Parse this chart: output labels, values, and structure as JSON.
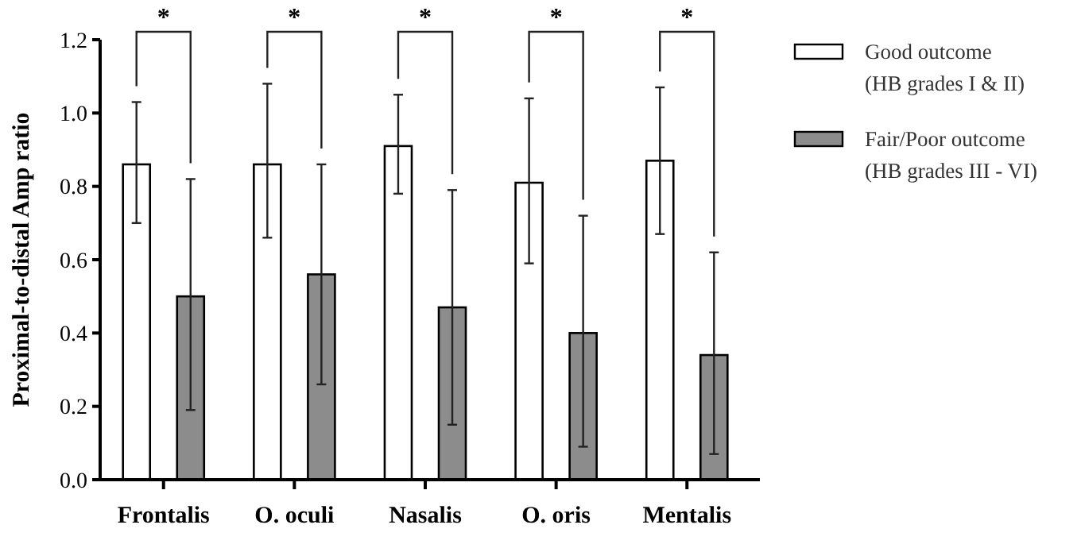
{
  "chart_data": {
    "type": "bar",
    "ylabel": "Proximal-to-distal Amp ratio",
    "categories": [
      "Frontalis",
      "O. oculi",
      "Nasalis",
      "O. oris",
      "Mentalis"
    ],
    "series": [
      {
        "name": "Good outcome (HB grades I & II)",
        "color": "#ffffff",
        "values": [
          0.86,
          0.86,
          0.91,
          0.81,
          0.87
        ],
        "errors": [
          [
            0.7,
            1.03
          ],
          [
            0.66,
            1.08
          ],
          [
            0.78,
            1.05
          ],
          [
            0.59,
            1.04
          ],
          [
            0.67,
            1.07
          ]
        ]
      },
      {
        "name": "Fair/Poor outcome (HB grades III - VI)",
        "color": "#8c8c8c",
        "values": [
          0.5,
          0.56,
          0.47,
          0.4,
          0.34
        ],
        "errors": [
          [
            0.19,
            0.82
          ],
          [
            0.26,
            0.86
          ],
          [
            0.15,
            0.79
          ],
          [
            0.09,
            0.72
          ],
          [
            0.07,
            0.62
          ]
        ]
      }
    ],
    "ylim": [
      0,
      1.2
    ],
    "yticks": [
      {
        "value": 0,
        "label": "0.0"
      },
      {
        "value": 0.2,
        "label": "0.2"
      },
      {
        "value": 0.4,
        "label": "0.4"
      },
      {
        "value": 0.6,
        "label": "0.6"
      },
      {
        "value": 0.8,
        "label": "0.8"
      },
      {
        "value": 1,
        "label": "1.0"
      },
      {
        "value": 1.2,
        "label": "1.2"
      }
    ],
    "grid": false,
    "legend": "right",
    "annotations": [
      "*",
      "*",
      "*",
      "*",
      "*"
    ]
  }
}
